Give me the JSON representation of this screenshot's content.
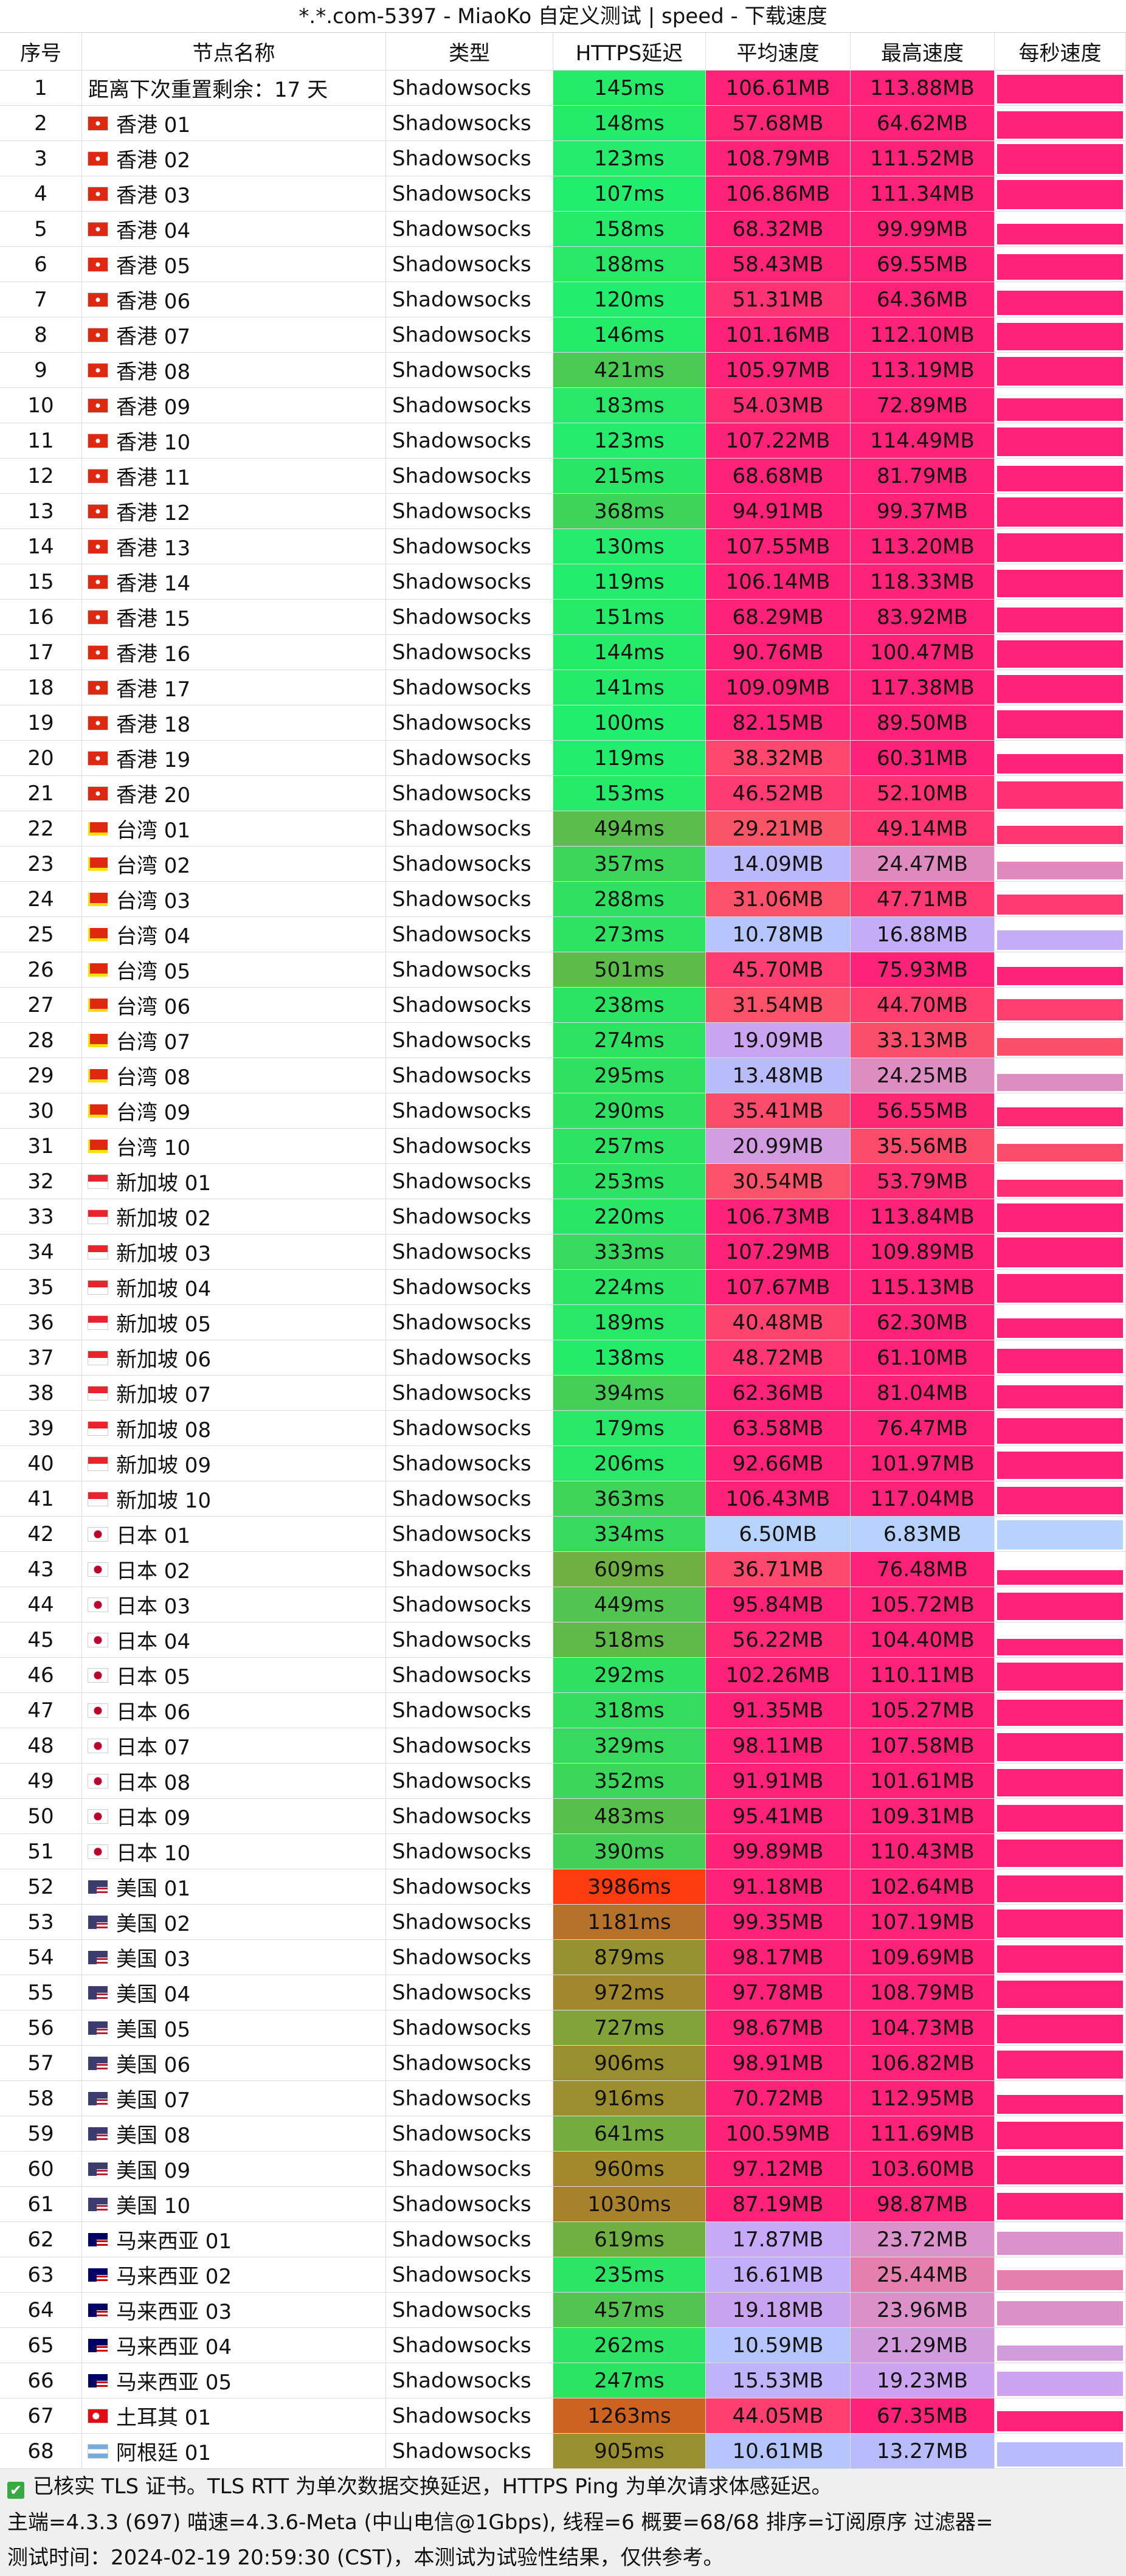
{
  "title": "*.*.com-5397 - MiaoKo 自定义测试 | speed - 下载速度",
  "table": {
    "header": [
      "序号",
      "节点名称",
      "类型",
      "HTTPS延迟",
      "平均速度",
      "最高速度",
      "每秒速度"
    ],
    "rows": [
      [
        "1",
        "距离下次重置剩余：17 天",
        "Shadowsocks",
        "145ms",
        "106.61MB",
        "113.88MB"
      ],
      [
        "2",
        "香港 01",
        "Shadowsocks",
        "148ms",
        "57.68MB",
        "64.62MB"
      ],
      [
        "3",
        "香港 02",
        "Shadowsocks",
        "123ms",
        "108.79MB",
        "111.52MB"
      ],
      [
        "4",
        "香港 03",
        "Shadowsocks",
        "107ms",
        "106.86MB",
        "111.34MB"
      ],
      [
        "5",
        "香港 04",
        "Shadowsocks",
        "158ms",
        "68.32MB",
        "99.99MB"
      ],
      [
        "6",
        "香港 05",
        "Shadowsocks",
        "188ms",
        "58.43MB",
        "69.55MB"
      ],
      [
        "7",
        "香港 06",
        "Shadowsocks",
        "120ms",
        "51.31MB",
        "64.36MB"
      ],
      [
        "8",
        "香港 07",
        "Shadowsocks",
        "146ms",
        "101.16MB",
        "112.10MB"
      ],
      [
        "9",
        "香港 08",
        "Shadowsocks",
        "421ms",
        "105.97MB",
        "113.19MB"
      ],
      [
        "10",
        "香港 09",
        "Shadowsocks",
        "183ms",
        "54.03MB",
        "72.89MB"
      ],
      [
        "11",
        "香港 10",
        "Shadowsocks",
        "123ms",
        "107.22MB",
        "114.49MB"
      ],
      [
        "12",
        "香港 11",
        "Shadowsocks",
        "215ms",
        "68.68MB",
        "81.79MB"
      ],
      [
        "13",
        "香港 12",
        "Shadowsocks",
        "368ms",
        "94.91MB",
        "99.37MB"
      ],
      [
        "14",
        "香港 13",
        "Shadowsocks",
        "130ms",
        "107.55MB",
        "113.20MB"
      ],
      [
        "15",
        "香港 14",
        "Shadowsocks",
        "119ms",
        "106.14MB",
        "118.33MB"
      ],
      [
        "16",
        "香港 15",
        "Shadowsocks",
        "151ms",
        "68.29MB",
        "83.92MB"
      ],
      [
        "17",
        "香港 16",
        "Shadowsocks",
        "144ms",
        "90.76MB",
        "100.47MB"
      ],
      [
        "18",
        "香港 17",
        "Shadowsocks",
        "141ms",
        "109.09MB",
        "117.38MB"
      ],
      [
        "19",
        "香港 18",
        "Shadowsocks",
        "100ms",
        "82.15MB",
        "89.50MB"
      ],
      [
        "20",
        "香港 19",
        "Shadowsocks",
        "119ms",
        "38.32MB",
        "60.31MB"
      ],
      [
        "21",
        "香港 20",
        "Shadowsocks",
        "153ms",
        "46.52MB",
        "52.10MB"
      ],
      [
        "22",
        "台湾 01",
        "Shadowsocks",
        "494ms",
        "29.21MB",
        "49.14MB"
      ],
      [
        "23",
        "台湾 02",
        "Shadowsocks",
        "357ms",
        "14.09MB",
        "24.47MB"
      ],
      [
        "24",
        "台湾 03",
        "Shadowsocks",
        "288ms",
        "31.06MB",
        "47.71MB"
      ],
      [
        "25",
        "台湾 04",
        "Shadowsocks",
        "273ms",
        "10.78MB",
        "16.88MB"
      ],
      [
        "26",
        "台湾 05",
        "Shadowsocks",
        "501ms",
        "45.70MB",
        "75.93MB"
      ],
      [
        "27",
        "台湾 06",
        "Shadowsocks",
        "238ms",
        "31.54MB",
        "44.70MB"
      ],
      [
        "28",
        "台湾 07",
        "Shadowsocks",
        "274ms",
        "19.09MB",
        "33.13MB"
      ],
      [
        "29",
        "台湾 08",
        "Shadowsocks",
        "295ms",
        "13.48MB",
        "24.25MB"
      ],
      [
        "30",
        "台湾 09",
        "Shadowsocks",
        "290ms",
        "35.41MB",
        "56.55MB"
      ],
      [
        "31",
        "台湾 10",
        "Shadowsocks",
        "257ms",
        "20.99MB",
        "35.56MB"
      ],
      [
        "32",
        "新加坡 01",
        "Shadowsocks",
        "253ms",
        "30.54MB",
        "53.79MB"
      ],
      [
        "33",
        "新加坡 02",
        "Shadowsocks",
        "220ms",
        "106.73MB",
        "113.84MB"
      ],
      [
        "34",
        "新加坡 03",
        "Shadowsocks",
        "333ms",
        "107.29MB",
        "109.89MB"
      ],
      [
        "35",
        "新加坡 04",
        "Shadowsocks",
        "224ms",
        "107.67MB",
        "115.13MB"
      ],
      [
        "36",
        "新加坡 05",
        "Shadowsocks",
        "189ms",
        "40.48MB",
        "62.30MB"
      ],
      [
        "37",
        "新加坡 06",
        "Shadowsocks",
        "138ms",
        "48.72MB",
        "61.10MB"
      ],
      [
        "38",
        "新加坡 07",
        "Shadowsocks",
        "394ms",
        "62.36MB",
        "81.04MB"
      ],
      [
        "39",
        "新加坡 08",
        "Shadowsocks",
        "179ms",
        "63.58MB",
        "76.47MB"
      ],
      [
        "40",
        "新加坡 09",
        "Shadowsocks",
        "206ms",
        "92.66MB",
        "101.97MB"
      ],
      [
        "41",
        "新加坡 10",
        "Shadowsocks",
        "363ms",
        "106.43MB",
        "117.04MB"
      ],
      [
        "42",
        "日本 01",
        "Shadowsocks",
        "334ms",
        "6.50MB",
        "6.83MB"
      ],
      [
        "43",
        "日本 02",
        "Shadowsocks",
        "609ms",
        "36.71MB",
        "76.48MB"
      ],
      [
        "44",
        "日本 03",
        "Shadowsocks",
        "449ms",
        "95.84MB",
        "105.72MB"
      ],
      [
        "45",
        "日本 04",
        "Shadowsocks",
        "518ms",
        "56.22MB",
        "104.40MB"
      ],
      [
        "46",
        "日本 05",
        "Shadowsocks",
        "292ms",
        "102.26MB",
        "110.11MB"
      ],
      [
        "47",
        "日本 06",
        "Shadowsocks",
        "318ms",
        "91.35MB",
        "105.27MB"
      ],
      [
        "48",
        "日本 07",
        "Shadowsocks",
        "329ms",
        "98.11MB",
        "107.58MB"
      ],
      [
        "49",
        "日本 08",
        "Shadowsocks",
        "352ms",
        "91.91MB",
        "101.61MB"
      ],
      [
        "50",
        "日本 09",
        "Shadowsocks",
        "483ms",
        "95.41MB",
        "109.31MB"
      ],
      [
        "51",
        "日本 10",
        "Shadowsocks",
        "390ms",
        "99.89MB",
        "110.43MB"
      ],
      [
        "52",
        "美国 01",
        "Shadowsocks",
        "3986ms",
        "91.18MB",
        "102.64MB"
      ],
      [
        "53",
        "美国 02",
        "Shadowsocks",
        "1181ms",
        "99.35MB",
        "107.19MB"
      ],
      [
        "54",
        "美国 03",
        "Shadowsocks",
        "879ms",
        "98.17MB",
        "109.69MB"
      ],
      [
        "55",
        "美国 04",
        "Shadowsocks",
        "972ms",
        "97.78MB",
        "108.79MB"
      ],
      [
        "56",
        "美国 05",
        "Shadowsocks",
        "727ms",
        "98.67MB",
        "104.73MB"
      ],
      [
        "57",
        "美国 06",
        "Shadowsocks",
        "906ms",
        "98.91MB",
        "106.82MB"
      ],
      [
        "58",
        "美国 07",
        "Shadowsocks",
        "916ms",
        "70.72MB",
        "112.95MB"
      ],
      [
        "59",
        "美国 08",
        "Shadowsocks",
        "641ms",
        "100.59MB",
        "111.69MB"
      ],
      [
        "60",
        "美国 09",
        "Shadowsocks",
        "960ms",
        "97.12MB",
        "103.60MB"
      ],
      [
        "61",
        "美国 10",
        "Shadowsocks",
        "1030ms",
        "87.19MB",
        "98.87MB"
      ],
      [
        "62",
        "马来西亚 01",
        "Shadowsocks",
        "619ms",
        "17.87MB",
        "23.72MB"
      ],
      [
        "63",
        "马来西亚 02",
        "Shadowsocks",
        "235ms",
        "16.61MB",
        "25.44MB"
      ],
      [
        "64",
        "马来西亚 03",
        "Shadowsocks",
        "457ms",
        "19.18MB",
        "23.96MB"
      ],
      [
        "65",
        "马来西亚 04",
        "Shadowsocks",
        "262ms",
        "10.59MB",
        "21.29MB"
      ],
      [
        "66",
        "马来西亚 05",
        "Shadowsocks",
        "247ms",
        "15.53MB",
        "19.23MB"
      ],
      [
        "67",
        "土耳其 01",
        "Shadowsocks",
        "1263ms",
        "44.05MB",
        "67.35MB"
      ],
      [
        "68",
        "阿根廷 01",
        "Shadowsocks",
        "905ms",
        "10.61MB",
        "13.27MB"
      ]
    ]
  },
  "footer": [
    "已核实 TLS 证书。TLS RTT 为单次数据交换延迟，HTTPS Ping 为单次请求体感延迟。",
    "主端=4.3.3 (697) 喵速=4.3.6-Meta (中山电信@1Gbps), 线程=6 概要=68/68 排序=订阅原序 过滤器=",
    "测试时间：2024-02-19 20:59:30 (CST)，本测试为试验性结果，仅供参考。"
  ]
}
